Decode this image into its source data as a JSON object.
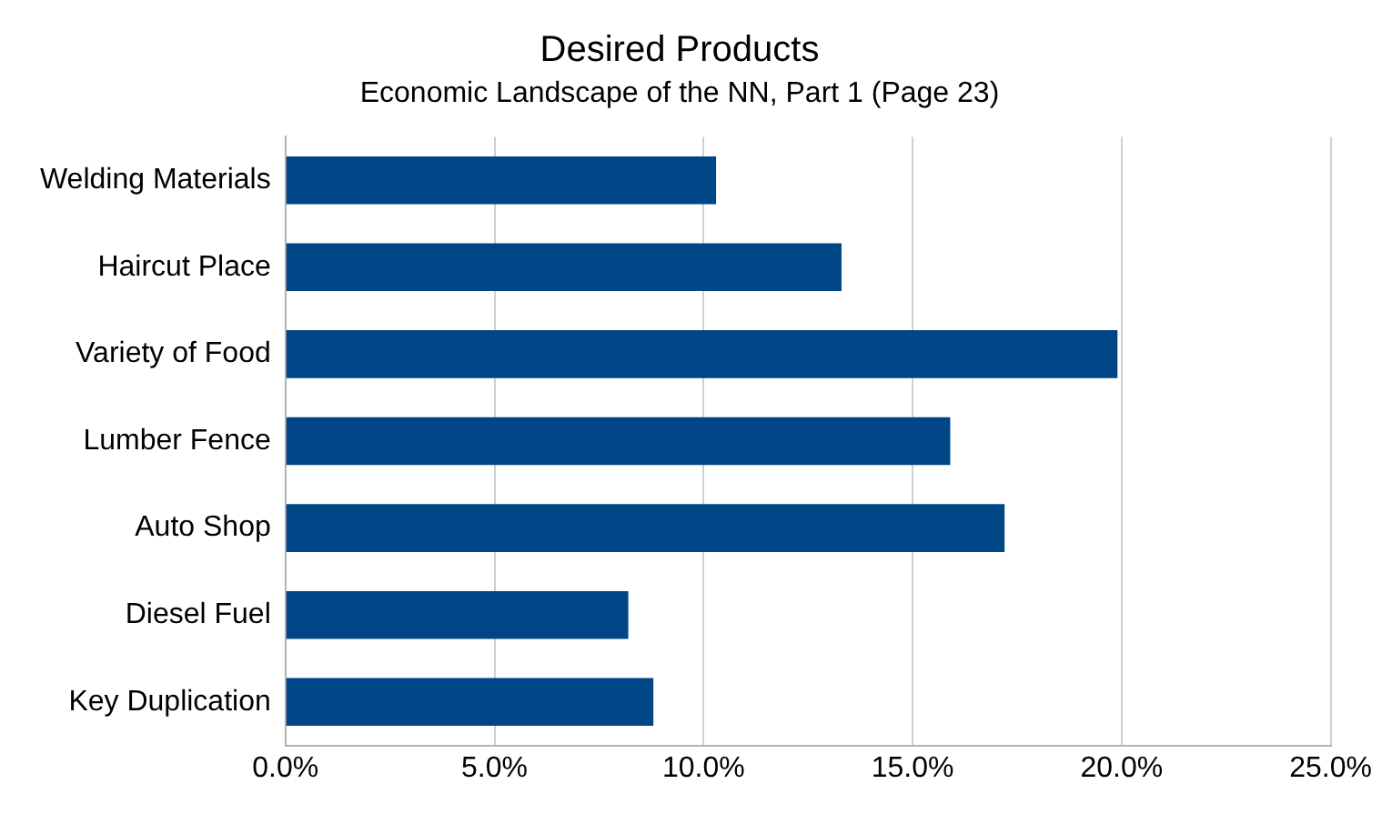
{
  "chart_data": {
    "type": "bar",
    "orientation": "horizontal",
    "title": "Desired Products",
    "subtitle": "Economic Landscape of the NN, Part 1 (Page 23)",
    "categories": [
      "Welding Materials",
      "Haircut Place",
      "Variety of Food",
      "Lumber Fence",
      "Auto Shop",
      "Diesel Fuel",
      "Key Duplication"
    ],
    "values": [
      10.3,
      13.3,
      19.9,
      15.9,
      17.2,
      8.2,
      8.8
    ],
    "color": "#004586",
    "xlim": [
      0,
      25
    ],
    "xticks": [
      {
        "value": 0,
        "label": "0.0%"
      },
      {
        "value": 5,
        "label": "5.0%"
      },
      {
        "value": 10,
        "label": "10.0%"
      },
      {
        "value": 15,
        "label": "15.0%"
      },
      {
        "value": 20,
        "label": "20.0%"
      },
      {
        "value": 25,
        "label": "25.0%"
      }
    ],
    "grid": "x",
    "legend": false
  }
}
